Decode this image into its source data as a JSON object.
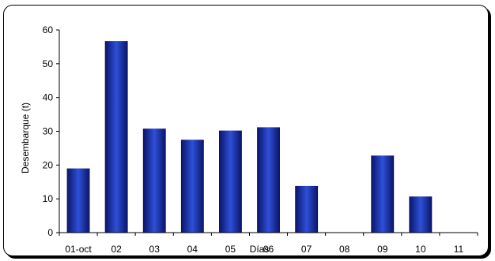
{
  "chart_data": {
    "type": "bar",
    "title": "",
    "xlabel": "Días",
    "ylabel": "Desembarque (t)",
    "categories": [
      "01-oct",
      "02",
      "03",
      "04",
      "05",
      "06",
      "07",
      "08",
      "09",
      "10",
      "11"
    ],
    "values": [
      19,
      56.7,
      30.8,
      27.5,
      30.2,
      31.2,
      13.8,
      0,
      22.8,
      10.7,
      0
    ],
    "ylim": [
      0,
      60
    ],
    "yticks": [
      0,
      10,
      20,
      30,
      40,
      50,
      60
    ],
    "ytick_labels": [
      "0",
      "10",
      "20",
      "30",
      "40",
      "50",
      "60"
    ],
    "grid": false,
    "legend": "none",
    "colors": {
      "bar_center": "#2E4FD8",
      "bar_edge": "#0A1466"
    }
  }
}
